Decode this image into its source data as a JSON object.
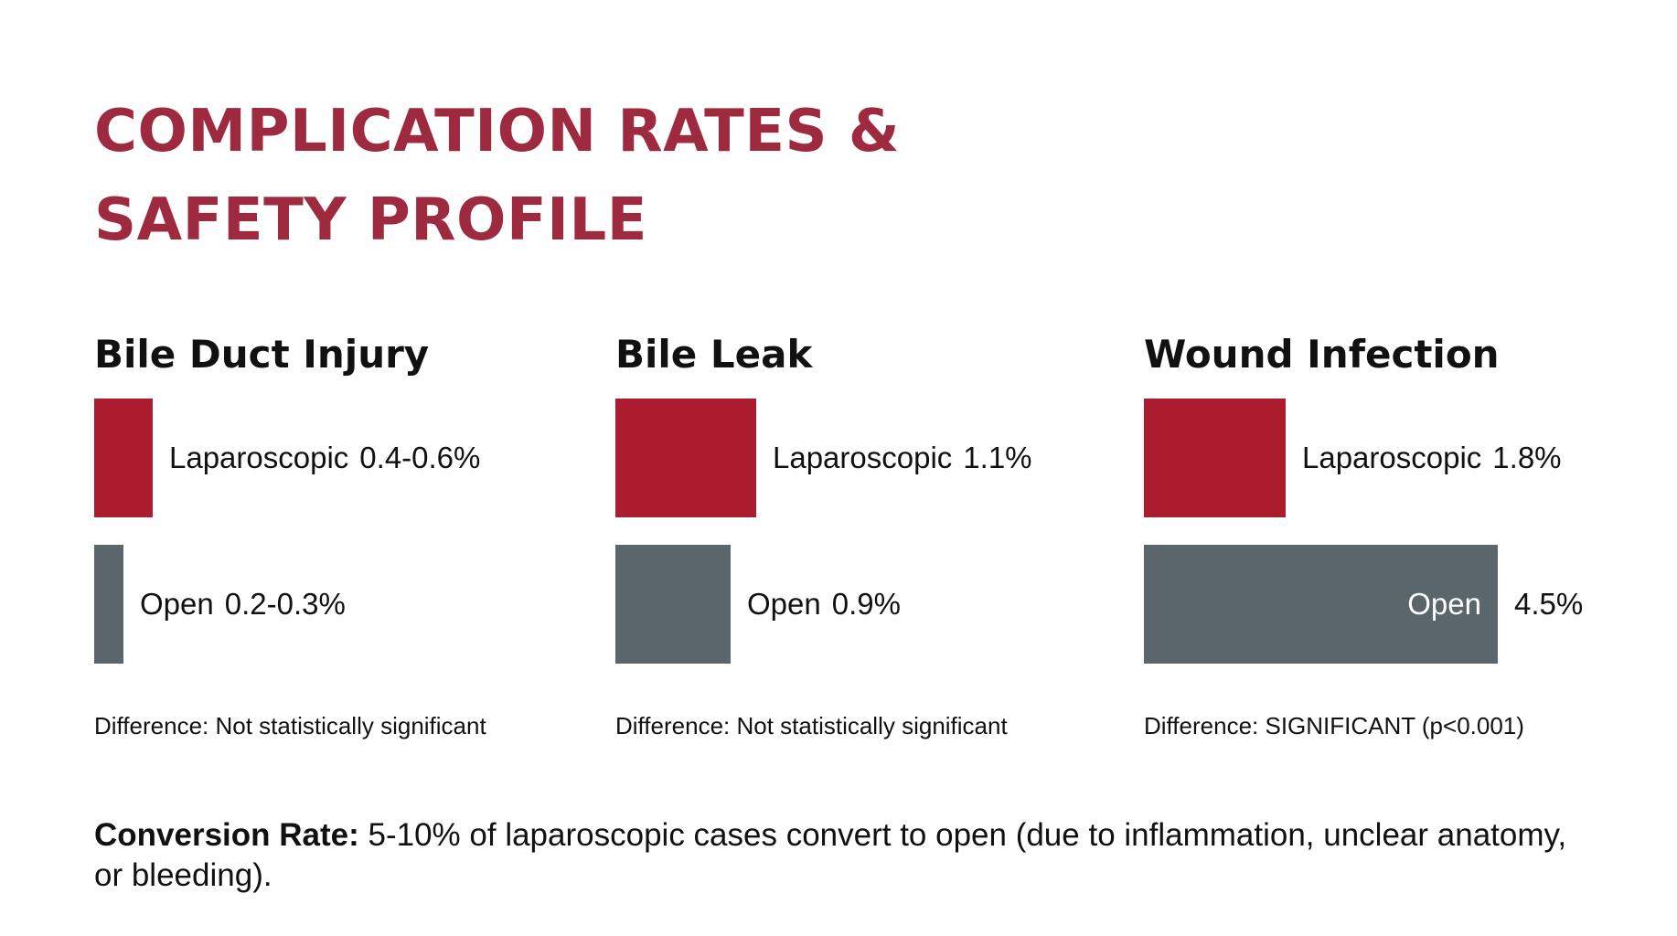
{
  "title": {
    "line1": "COMPLICATION RATES &",
    "line2": "SAFETY PROFILE"
  },
  "colors": {
    "title": "#9e2a3f",
    "laparoscopic": "#ac1c2f",
    "open": "#5b666c"
  },
  "chart_data": [
    {
      "type": "bar",
      "title": "Bile Duct Injury",
      "categories": [
        "Laparoscopic",
        "Open"
      ],
      "value_labels": [
        "0.4-0.6%",
        "0.2-0.3%"
      ],
      "values": [
        0.5,
        0.25
      ],
      "unit": "%",
      "note": "Difference: Not statistically significant"
    },
    {
      "type": "bar",
      "title": "Bile Leak",
      "categories": [
        "Laparoscopic",
        "Open"
      ],
      "value_labels": [
        "1.1%",
        "0.9%"
      ],
      "values": [
        1.1,
        0.9
      ],
      "unit": "%",
      "note": "Difference: Not statistically significant"
    },
    {
      "type": "bar",
      "title": "Wound Infection",
      "categories": [
        "Laparoscopic",
        "Open"
      ],
      "value_labels": [
        "1.8%",
        "4.5%"
      ],
      "values": [
        1.8,
        4.5
      ],
      "unit": "%",
      "note": "Difference: SIGNIFICANT (p<0.001)"
    }
  ],
  "conversion": {
    "label": "Conversion Rate:",
    "text": " 5-10% of laparoscopic cases convert to open (due to inflammation, unclear anatomy, or bleeding)."
  }
}
